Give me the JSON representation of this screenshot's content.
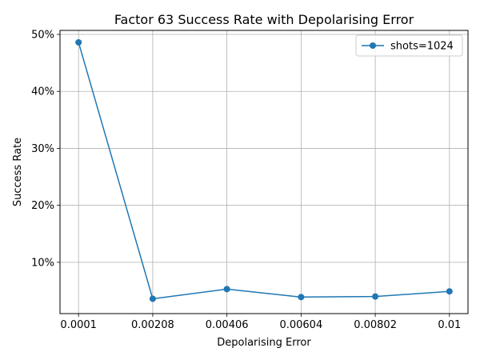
{
  "chart_data": {
    "type": "line",
    "title": "Factor 63 Success Rate with Depolarising Error",
    "xlabel": "Depolarising Error",
    "ylabel": "Success Rate",
    "x_ticks": [
      "0.0001",
      "0.00208",
      "0.00406",
      "0.00604",
      "0.00802",
      "0.01"
    ],
    "y_ticks": [
      "10%",
      "20%",
      "30%",
      "40%",
      "50%"
    ],
    "y_tick_values": [
      10,
      20,
      30,
      40,
      50
    ],
    "xlim": [
      -0.000395,
      0.010495
    ],
    "ylim": [
      1.0,
      50.7
    ],
    "grid": true,
    "legend_position": "top-right",
    "series": [
      {
        "name": "shots=1024",
        "color": "#1f77b4",
        "marker": "circle",
        "x": [
          0.0001,
          0.00208,
          0.00406,
          0.00604,
          0.00802,
          0.01
        ],
        "y": [
          48.6,
          3.6,
          5.3,
          3.9,
          4.0,
          4.9
        ]
      }
    ]
  }
}
